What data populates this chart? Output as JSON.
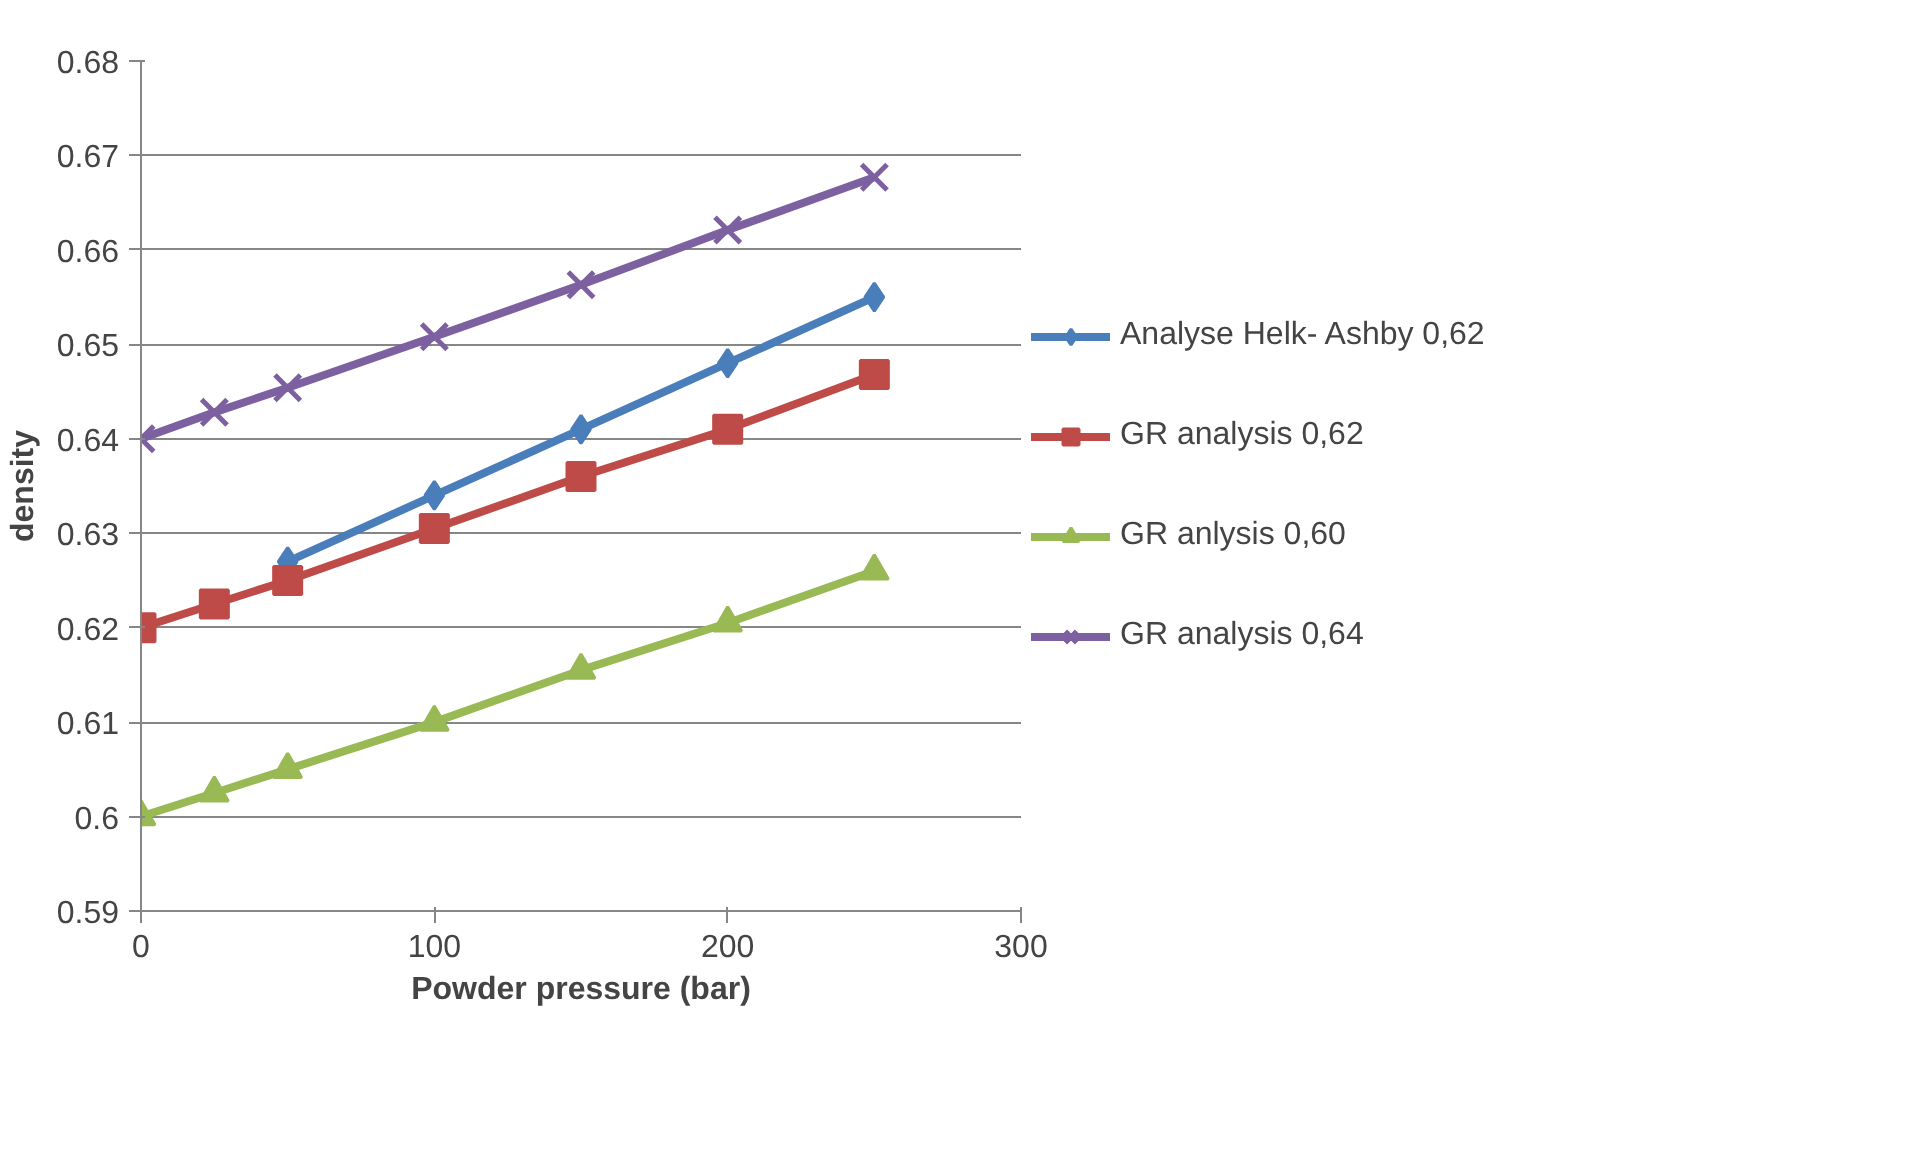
{
  "chart_data": {
    "type": "line",
    "xlabel": "Powder pressure (bar)",
    "ylabel": "density",
    "x": [
      0,
      25,
      50,
      100,
      150,
      200,
      250
    ],
    "series": [
      {
        "name": "Analyse Helk- Ashby 0,62",
        "color": "#4a7ebb",
        "marker": "diamond",
        "x": [
          50,
          100,
          150,
          200,
          250
        ],
        "values": [
          0.627,
          0.634,
          0.641,
          0.648,
          0.655
        ]
      },
      {
        "name": "GR analysis 0,62",
        "color": "#be4b48",
        "marker": "square",
        "values": [
          0.62,
          0.6225,
          0.625,
          0.6305,
          0.636,
          0.641,
          0.6468
        ]
      },
      {
        "name": "GR anlysis 0,60",
        "color": "#98b954",
        "marker": "triangle",
        "values": [
          0.6,
          0.6025,
          0.605,
          0.61,
          0.6155,
          0.6205,
          0.626
        ]
      },
      {
        "name": "GR analysis 0,64",
        "color": "#7d60a0",
        "marker": "cross",
        "values": [
          0.64,
          0.6428,
          0.6454,
          0.6508,
          0.6563,
          0.6621,
          0.6677
        ]
      }
    ],
    "xlim": [
      0,
      300
    ],
    "xticks": [
      0,
      100,
      200,
      300
    ],
    "ylim": [
      0.59,
      0.68
    ],
    "yticks": [
      0.59,
      0.6,
      0.61,
      0.62,
      0.63,
      0.64,
      0.65,
      0.66,
      0.67,
      0.68
    ],
    "grid": "y",
    "legend": "right",
    "line_style": "solid"
  }
}
